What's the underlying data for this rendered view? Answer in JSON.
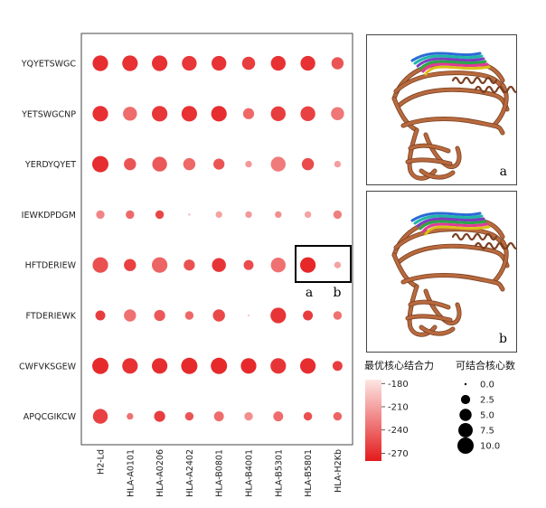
{
  "chart_data": {
    "type": "bubble",
    "rows": [
      "YQYETSWGC",
      "YETSWGCNP",
      "YERDYQYET",
      "IEWKDPDGM",
      "HFTDERIEW",
      "FTDERIEWK",
      "CWFVKSGEW",
      "APQCGIKCW"
    ],
    "columns": [
      "H2-Ld",
      "HLA-A0101",
      "HLA-A0206",
      "HLA-A2402",
      "HLA-B0801",
      "HLA-B4001",
      "HLA-B5301",
      "HLA-B5801",
      "HLA-H2Kb"
    ],
    "size_values": [
      [
        9,
        9,
        9,
        8,
        8,
        6,
        8,
        8,
        5
      ],
      [
        9,
        7,
        9,
        9,
        9,
        4,
        8,
        8,
        6
      ],
      [
        10,
        5,
        8,
        5,
        4,
        1,
        8,
        5,
        1
      ],
      [
        2,
        2,
        2,
        0,
        1,
        1,
        1,
        1,
        2
      ],
      [
        9,
        5,
        9,
        4,
        7,
        3,
        8,
        9,
        1
      ],
      [
        3,
        5,
        4,
        2,
        5,
        0,
        9,
        3,
        2
      ],
      [
        10,
        9,
        9,
        10,
        10,
        9,
        9,
        9,
        3
      ],
      [
        8,
        1,
        4,
        2,
        3,
        2,
        3,
        2,
        2
      ]
    ],
    "color_values": [
      [
        -270,
        -268,
        -268,
        -265,
        -267,
        -262,
        -268,
        -268,
        -250
      ],
      [
        -268,
        -238,
        -265,
        -268,
        -270,
        -240,
        -262,
        -260,
        -232
      ],
      [
        -270,
        -250,
        -248,
        -240,
        -250,
        -215,
        -230,
        -255,
        -212
      ],
      [
        -225,
        -240,
        -258,
        -200,
        -210,
        -215,
        -220,
        -210,
        -228
      ],
      [
        -252,
        -260,
        -242,
        -252,
        -266,
        -255,
        -235,
        -273,
        -210
      ],
      [
        -262,
        -235,
        -248,
        -240,
        -256,
        -190,
        -266,
        -262,
        -235
      ],
      [
        -272,
        -268,
        -270,
        -272,
        -272,
        -272,
        -266,
        -270,
        -262
      ],
      [
        -260,
        -235,
        -262,
        -250,
        -238,
        -220,
        -238,
        -252,
        -242
      ]
    ],
    "color_legend": {
      "title": "最优核心结合力",
      "ticks": [
        "-180",
        "-210",
        "-240",
        "-270"
      ],
      "range": [
        -280,
        -175
      ],
      "low_color": "#e41a1c",
      "high_color": "#fde6e4"
    },
    "size_legend": {
      "title": "可结合核心数",
      "ticks": [
        "0.0",
        "2.5",
        "5.0",
        "7.5",
        "10.0"
      ],
      "values": [
        0,
        2.5,
        5,
        7.5,
        10
      ]
    },
    "highlight_labels": [
      "a",
      "b"
    ]
  },
  "panels": [
    {
      "label": "a"
    },
    {
      "label": "b"
    }
  ],
  "colors": {
    "protein": "#b86a3e",
    "protein_dark": "#7a4022",
    "peptide_colors": [
      "#2b6bd6",
      "#1fb6a6",
      "#7b3fc4",
      "#2aa84a",
      "#e03a9a",
      "#d9c21a"
    ]
  }
}
